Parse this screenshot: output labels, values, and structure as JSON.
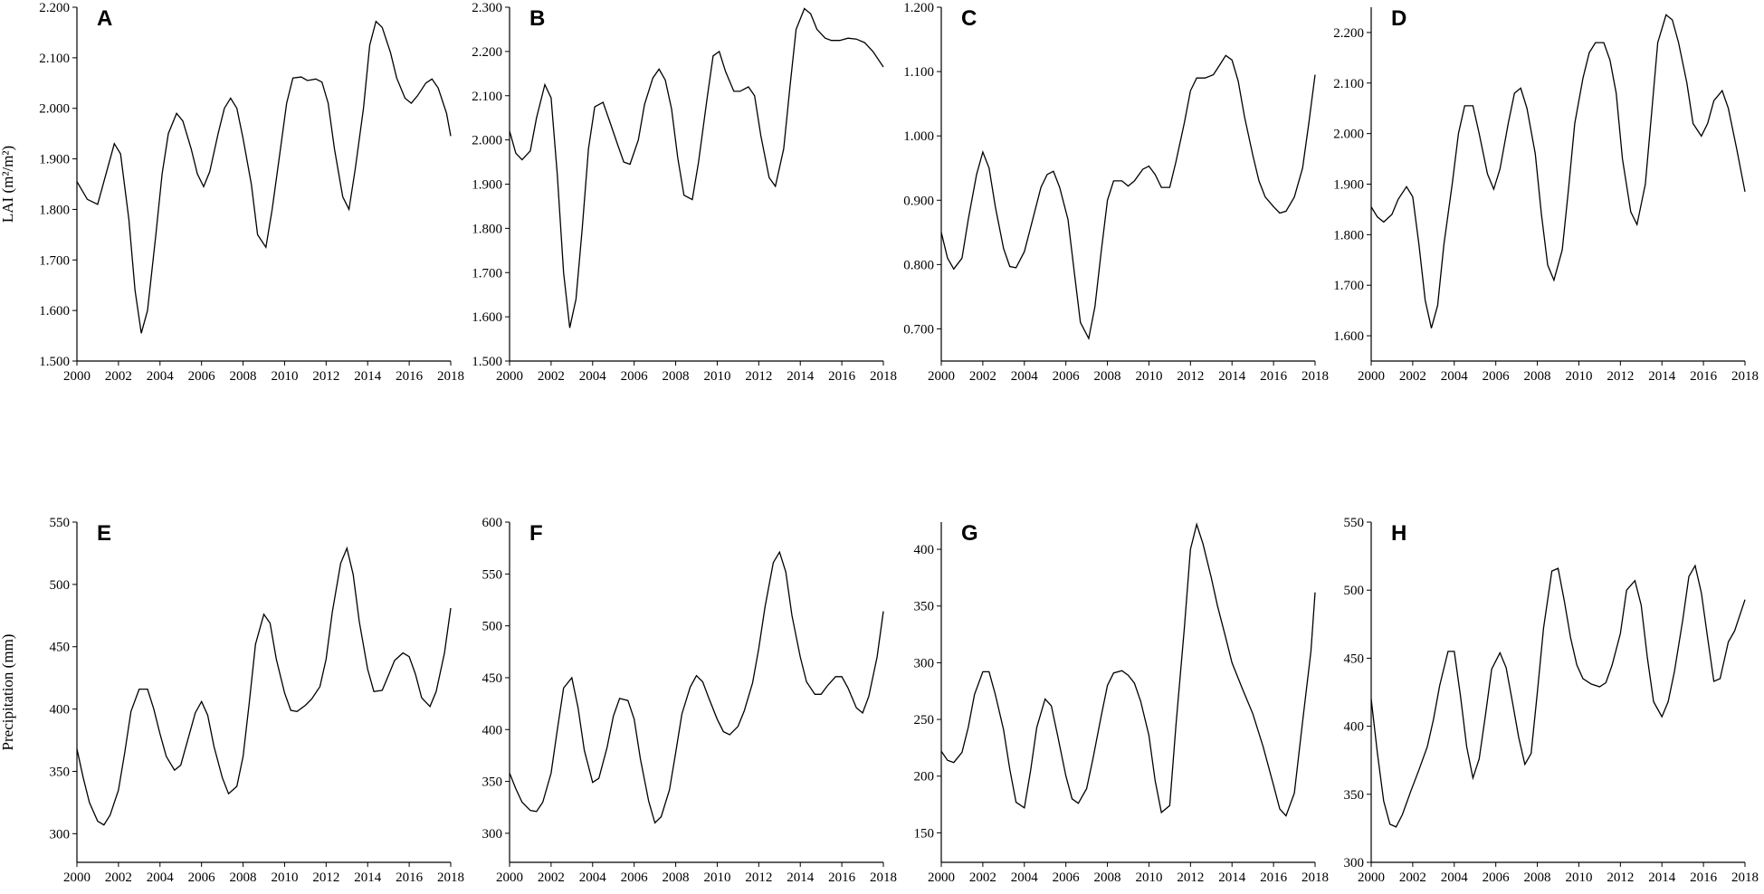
{
  "chart_data": [
    {
      "type": "line",
      "label": "A",
      "ylabel": "LAI (m²/m²)",
      "color": "#000000",
      "x": [
        2000,
        2000.5,
        2001,
        2001.4,
        2001.8,
        2002.1,
        2002.5,
        2002.8,
        2003.1,
        2003.4,
        2003.8,
        2004.1,
        2004.4,
        2004.8,
        2005.1,
        2005.5,
        2005.8,
        2006.1,
        2006.4,
        2006.8,
        2007.1,
        2007.4,
        2007.7,
        2008,
        2008.4,
        2008.7,
        2009.1,
        2009.4,
        2009.8,
        2010.1,
        2010.4,
        2010.8,
        2011.1,
        2011.5,
        2011.8,
        2012.1,
        2012.4,
        2012.8,
        2013.1,
        2013.4,
        2013.8,
        2014.1,
        2014.4,
        2014.7,
        2015.1,
        2015.4,
        2015.8,
        2016.1,
        2016.4,
        2016.8,
        2017.1,
        2017.4,
        2017.8,
        2018
      ],
      "values": [
        1.855,
        1.82,
        1.81,
        1.87,
        1.93,
        1.91,
        1.78,
        1.64,
        1.555,
        1.6,
        1.75,
        1.87,
        1.95,
        1.99,
        1.975,
        1.92,
        1.87,
        1.845,
        1.875,
        1.95,
        2.0,
        2.02,
        2.0,
        1.94,
        1.85,
        1.75,
        1.725,
        1.8,
        1.92,
        2.01,
        2.06,
        2.062,
        2.055,
        2.058,
        2.052,
        2.01,
        1.92,
        1.825,
        1.8,
        1.88,
        2.0,
        2.125,
        2.172,
        2.16,
        2.11,
        2.06,
        2.02,
        2.01,
        2.025,
        2.05,
        2.058,
        2.04,
        1.99,
        1.945
      ],
      "xlim": [
        2000,
        2018
      ],
      "ylim": [
        1.5,
        2.2
      ],
      "xticks": [
        2000,
        2002,
        2004,
        2006,
        2008,
        2010,
        2012,
        2014,
        2016,
        2018
      ],
      "yticks": [
        {
          "value": 1.5,
          "label": "1.500"
        },
        {
          "value": 1.6,
          "label": "1.600"
        },
        {
          "value": 1.7,
          "label": "1.700"
        },
        {
          "value": 1.8,
          "label": "1.800"
        },
        {
          "value": 1.9,
          "label": "1.900"
        },
        {
          "value": 2.0,
          "label": "2.000"
        },
        {
          "value": 2.1,
          "label": "2.100"
        },
        {
          "value": 2.2,
          "label": "2.200"
        }
      ]
    },
    {
      "type": "line",
      "label": "B",
      "color": "#000000",
      "x": [
        2000,
        2000.3,
        2000.6,
        2001,
        2001.3,
        2001.7,
        2002,
        2002.3,
        2002.6,
        2002.9,
        2003.2,
        2003.5,
        2003.8,
        2004.1,
        2004.5,
        2004.8,
        2005.2,
        2005.5,
        2005.8,
        2006.2,
        2006.5,
        2006.9,
        2007.2,
        2007.5,
        2007.8,
        2008.1,
        2008.4,
        2008.8,
        2009.1,
        2009.5,
        2009.8,
        2010.1,
        2010.4,
        2010.8,
        2011.1,
        2011.5,
        2011.8,
        2012.1,
        2012.5,
        2012.8,
        2013.2,
        2013.5,
        2013.8,
        2014.2,
        2014.5,
        2014.8,
        2015.2,
        2015.5,
        2015.9,
        2016.3,
        2016.7,
        2017.1,
        2017.5,
        2018
      ],
      "values": [
        2.02,
        1.97,
        1.955,
        1.975,
        2.05,
        2.125,
        2.095,
        1.92,
        1.7,
        1.575,
        1.64,
        1.8,
        1.98,
        2.075,
        2.085,
        2.045,
        1.99,
        1.95,
        1.945,
        2.0,
        2.08,
        2.14,
        2.16,
        2.135,
        2.07,
        1.96,
        1.875,
        1.865,
        1.95,
        2.09,
        2.19,
        2.2,
        2.155,
        2.11,
        2.11,
        2.12,
        2.1,
        2.01,
        1.915,
        1.895,
        1.98,
        2.12,
        2.25,
        2.297,
        2.285,
        2.25,
        2.23,
        2.225,
        2.225,
        2.23,
        2.228,
        2.22,
        2.2,
        2.165
      ],
      "xlim": [
        2000,
        2018
      ],
      "ylim": [
        1.5,
        2.3
      ],
      "xticks": [
        2000,
        2002,
        2004,
        2006,
        2008,
        2010,
        2012,
        2014,
        2016,
        2018
      ],
      "yticks": [
        {
          "value": 1.5,
          "label": "1.500"
        },
        {
          "value": 1.6,
          "label": "1.600"
        },
        {
          "value": 1.7,
          "label": "1.700"
        },
        {
          "value": 1.8,
          "label": "1.800"
        },
        {
          "value": 1.9,
          "label": "1.900"
        },
        {
          "value": 2.0,
          "label": "2.000"
        },
        {
          "value": 2.1,
          "label": "2.100"
        },
        {
          "value": 2.2,
          "label": "2.200"
        },
        {
          "value": 2.3,
          "label": "2.300"
        }
      ]
    },
    {
      "type": "line",
      "label": "C",
      "color": "#000000",
      "x": [
        2000,
        2000.3,
        2000.6,
        2001,
        2001.3,
        2001.7,
        2002,
        2002.3,
        2002.6,
        2003,
        2003.3,
        2003.6,
        2004,
        2004.4,
        2004.8,
        2005.1,
        2005.4,
        2005.7,
        2006.1,
        2006.4,
        2006.7,
        2007.1,
        2007.4,
        2007.7,
        2008,
        2008.3,
        2008.7,
        2009,
        2009.3,
        2009.7,
        2010,
        2010.3,
        2010.6,
        2011,
        2011.3,
        2011.7,
        2012,
        2012.3,
        2012.7,
        2013.1,
        2013.4,
        2013.7,
        2014,
        2014.3,
        2014.6,
        2015,
        2015.3,
        2015.6,
        2016,
        2016.3,
        2016.6,
        2017,
        2017.4,
        2017.7,
        2018
      ],
      "values": [
        0.85,
        0.81,
        0.793,
        0.81,
        0.87,
        0.94,
        0.975,
        0.95,
        0.89,
        0.825,
        0.797,
        0.795,
        0.82,
        0.87,
        0.92,
        0.94,
        0.945,
        0.92,
        0.87,
        0.79,
        0.71,
        0.685,
        0.735,
        0.82,
        0.9,
        0.93,
        0.93,
        0.922,
        0.93,
        0.948,
        0.953,
        0.94,
        0.92,
        0.92,
        0.96,
        1.02,
        1.07,
        1.09,
        1.09,
        1.095,
        1.11,
        1.125,
        1.118,
        1.085,
        1.03,
        0.97,
        0.93,
        0.905,
        0.89,
        0.88,
        0.883,
        0.905,
        0.95,
        1.02,
        1.095
      ],
      "xlim": [
        2000,
        2018
      ],
      "ylim": [
        0.65,
        1.2
      ],
      "xticks": [
        2000,
        2002,
        2004,
        2006,
        2008,
        2010,
        2012,
        2014,
        2016,
        2018
      ],
      "yticks": [
        {
          "value": 0.7,
          "label": "0.700"
        },
        {
          "value": 0.8,
          "label": "0.800"
        },
        {
          "value": 0.9,
          "label": "0.900"
        },
        {
          "value": 1.0,
          "label": "1.000"
        },
        {
          "value": 1.1,
          "label": "1.100"
        },
        {
          "value": 1.2,
          "label": "1.200"
        }
      ]
    },
    {
      "type": "line",
      "label": "D",
      "color": "#000000",
      "x": [
        2000,
        2000.3,
        2000.6,
        2001,
        2001.3,
        2001.7,
        2002,
        2002.3,
        2002.6,
        2002.9,
        2003.2,
        2003.5,
        2003.9,
        2004.2,
        2004.5,
        2004.9,
        2005.2,
        2005.6,
        2005.9,
        2006.2,
        2006.6,
        2006.9,
        2007.2,
        2007.5,
        2007.9,
        2008.2,
        2008.5,
        2008.8,
        2009.2,
        2009.5,
        2009.8,
        2010.2,
        2010.5,
        2010.8,
        2011.2,
        2011.5,
        2011.8,
        2012.1,
        2012.5,
        2012.8,
        2013.2,
        2013.5,
        2013.8,
        2014.2,
        2014.5,
        2014.8,
        2015.2,
        2015.5,
        2015.9,
        2016.2,
        2016.5,
        2016.9,
        2017.2,
        2017.6,
        2018
      ],
      "values": [
        1.855,
        1.835,
        1.825,
        1.84,
        1.87,
        1.895,
        1.875,
        1.78,
        1.67,
        1.615,
        1.66,
        1.78,
        1.9,
        2.0,
        2.055,
        2.055,
        2.0,
        1.92,
        1.89,
        1.93,
        2.02,
        2.08,
        2.09,
        2.05,
        1.96,
        1.84,
        1.74,
        1.71,
        1.77,
        1.89,
        2.02,
        2.11,
        2.16,
        2.18,
        2.18,
        2.145,
        2.08,
        1.95,
        1.845,
        1.82,
        1.9,
        2.04,
        2.18,
        2.235,
        2.225,
        2.18,
        2.1,
        2.02,
        1.995,
        2.02,
        2.065,
        2.085,
        2.05,
        1.97,
        1.885
      ],
      "xlim": [
        2000,
        2018
      ],
      "ylim": [
        1.55,
        2.25
      ],
      "xticks": [
        2000,
        2002,
        2004,
        2006,
        2008,
        2010,
        2012,
        2014,
        2016,
        2018
      ],
      "yticks": [
        {
          "value": 1.6,
          "label": "1.600"
        },
        {
          "value": 1.7,
          "label": "1.700"
        },
        {
          "value": 1.8,
          "label": "1.800"
        },
        {
          "value": 1.9,
          "label": "1.900"
        },
        {
          "value": 2.0,
          "label": "2.000"
        },
        {
          "value": 2.1,
          "label": "2.100"
        },
        {
          "value": 2.2,
          "label": "2.200"
        }
      ]
    },
    {
      "type": "line",
      "label": "E",
      "ylabel": "Precipitation (mm)",
      "color": "#000000",
      "x": [
        2000,
        2000.3,
        2000.6,
        2001,
        2001.3,
        2001.6,
        2002,
        2002.3,
        2002.6,
        2003,
        2003.4,
        2003.7,
        2004,
        2004.3,
        2004.7,
        2005,
        2005.3,
        2005.7,
        2006,
        2006.3,
        2006.6,
        2007,
        2007.3,
        2007.7,
        2008,
        2008.3,
        2008.6,
        2009,
        2009.3,
        2009.6,
        2010,
        2010.3,
        2010.6,
        2011,
        2011.3,
        2011.7,
        2012,
        2012.3,
        2012.7,
        2013,
        2013.3,
        2013.6,
        2014,
        2014.3,
        2014.7,
        2015,
        2015.3,
        2015.7,
        2016,
        2016.3,
        2016.6,
        2017,
        2017.3,
        2017.7,
        2018
      ],
      "values": [
        368,
        345,
        325,
        310,
        307,
        315,
        335,
        365,
        398,
        416,
        416,
        400,
        380,
        362,
        351,
        355,
        373,
        397,
        406,
        395,
        370,
        345,
        332,
        338,
        362,
        405,
        452,
        476,
        469,
        440,
        413,
        399,
        398,
        403,
        408,
        418,
        440,
        478,
        517,
        529,
        508,
        470,
        432,
        414,
        415,
        427,
        439,
        445,
        442,
        428,
        409,
        402,
        414,
        445,
        481
      ],
      "xlim": [
        2000,
        2018
      ],
      "ylim": [
        277,
        550
      ],
      "xticks": [
        2000,
        2002,
        2004,
        2006,
        2008,
        2010,
        2012,
        2014,
        2016,
        2018
      ],
      "yticks": [
        300,
        350,
        400,
        450,
        500,
        550
      ]
    },
    {
      "type": "line",
      "label": "F",
      "color": "#000000",
      "x": [
        2000,
        2000.3,
        2000.6,
        2001,
        2001.3,
        2001.6,
        2002,
        2002.3,
        2002.6,
        2003,
        2003.3,
        2003.6,
        2004,
        2004.3,
        2004.7,
        2005,
        2005.3,
        2005.7,
        2006,
        2006.3,
        2006.7,
        2007,
        2007.3,
        2007.7,
        2008,
        2008.3,
        2008.7,
        2009,
        2009.3,
        2009.6,
        2010,
        2010.3,
        2010.6,
        2011,
        2011.3,
        2011.7,
        2012,
        2012.3,
        2012.7,
        2013,
        2013.3,
        2013.6,
        2014,
        2014.3,
        2014.7,
        2015,
        2015.3,
        2015.7,
        2016,
        2016.3,
        2016.7,
        2017,
        2017.3,
        2017.7,
        2018
      ],
      "values": [
        358,
        343,
        330,
        322,
        321,
        330,
        358,
        400,
        440,
        450,
        421,
        380,
        349,
        353,
        383,
        413,
        430,
        428,
        410,
        372,
        331,
        310,
        316,
        342,
        378,
        415,
        441,
        452,
        446,
        430,
        410,
        398,
        395,
        403,
        418,
        445,
        478,
        518,
        561,
        571,
        552,
        510,
        470,
        446,
        434,
        434,
        442,
        451,
        451,
        440,
        421,
        416,
        432,
        470,
        514
      ],
      "xlim": [
        2000,
        2018
      ],
      "ylim": [
        272,
        600
      ],
      "xticks": [
        2000,
        2002,
        2004,
        2006,
        2008,
        2010,
        2012,
        2014,
        2016,
        2018
      ],
      "yticks": [
        300,
        350,
        400,
        450,
        500,
        550,
        600
      ]
    },
    {
      "type": "line",
      "label": "G",
      "color": "#000000",
      "x": [
        2000,
        2000.3,
        2000.6,
        2001,
        2001.3,
        2001.6,
        2002,
        2002.3,
        2002.6,
        2003,
        2003.3,
        2003.6,
        2004,
        2004.3,
        2004.6,
        2005,
        2005.3,
        2005.6,
        2006,
        2006.3,
        2006.6,
        2007,
        2007.3,
        2007.7,
        2008,
        2008.3,
        2008.7,
        2009,
        2009.3,
        2009.6,
        2010,
        2010.3,
        2010.6,
        2011,
        2011.3,
        2011.7,
        2012,
        2012.3,
        2012.6,
        2013,
        2013.3,
        2013.7,
        2014,
        2014.5,
        2015,
        2015.5,
        2016,
        2016.3,
        2016.6,
        2017,
        2017.4,
        2017.8,
        2018
      ],
      "values": [
        222,
        214,
        212,
        221,
        243,
        272,
        292,
        292,
        272,
        241,
        206,
        177,
        172,
        205,
        243,
        268,
        262,
        236,
        200,
        180,
        176,
        189,
        215,
        253,
        280,
        291,
        293,
        289,
        282,
        266,
        236,
        196,
        168,
        174,
        245,
        330,
        400,
        422,
        405,
        375,
        350,
        322,
        300,
        277,
        255,
        226,
        192,
        171,
        165,
        185,
        248,
        310,
        362
      ],
      "xlim": [
        2000,
        2018
      ],
      "ylim": [
        124,
        424
      ],
      "xticks": [
        2000,
        2002,
        2004,
        2006,
        2008,
        2010,
        2012,
        2014,
        2016,
        2018
      ],
      "yticks": [
        150,
        200,
        250,
        300,
        350,
        400
      ]
    },
    {
      "type": "line",
      "label": "H",
      "color": "#000000",
      "x": [
        2000,
        2000.3,
        2000.6,
        2000.9,
        2001.2,
        2001.5,
        2001.9,
        2002.3,
        2002.7,
        2003,
        2003.3,
        2003.7,
        2004,
        2004.3,
        2004.6,
        2004.9,
        2005.2,
        2005.5,
        2005.8,
        2006.2,
        2006.5,
        2006.8,
        2007.1,
        2007.4,
        2007.7,
        2008,
        2008.3,
        2008.7,
        2009,
        2009.3,
        2009.6,
        2009.9,
        2010.2,
        2010.6,
        2011,
        2011.3,
        2011.6,
        2012,
        2012.3,
        2012.7,
        2013,
        2013.3,
        2013.6,
        2014,
        2014.3,
        2014.6,
        2015,
        2015.3,
        2015.6,
        2015.9,
        2016.2,
        2016.5,
        2016.8,
        2017.2,
        2017.5,
        2018
      ],
      "values": [
        420,
        380,
        345,
        328,
        326,
        335,
        352,
        368,
        385,
        405,
        430,
        455,
        455,
        422,
        385,
        362,
        376,
        408,
        442,
        454,
        443,
        418,
        392,
        372,
        380,
        425,
        472,
        514,
        516,
        492,
        465,
        445,
        435,
        431,
        429,
        432,
        445,
        468,
        500,
        507,
        489,
        450,
        418,
        407,
        418,
        440,
        478,
        510,
        518,
        498,
        465,
        433,
        435,
        462,
        470,
        493
      ],
      "xlim": [
        2000,
        2018
      ],
      "ylim": [
        300,
        550
      ],
      "xticks": [
        2000,
        2002,
        2004,
        2006,
        2008,
        2010,
        2012,
        2014,
        2016,
        2018
      ],
      "yticks": [
        300,
        350,
        400,
        450,
        500,
        550
      ]
    }
  ]
}
